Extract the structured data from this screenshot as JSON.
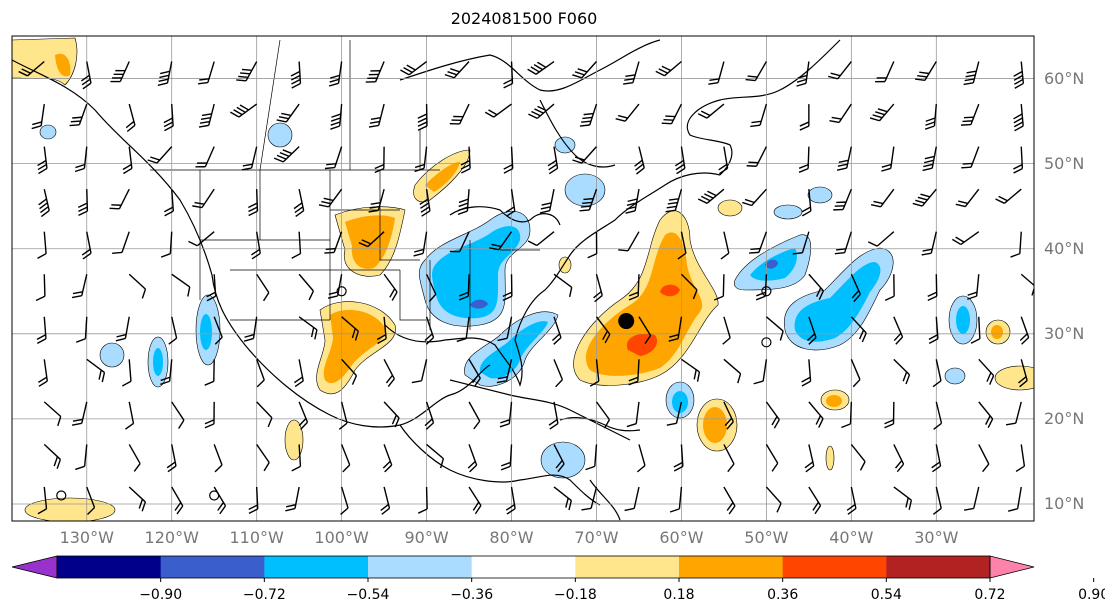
{
  "title": "2024081500 F060",
  "lat_labels": [
    "60°N",
    "50°N",
    "40°N",
    "30°N",
    "20°N",
    "10°N"
  ],
  "lon_labels": [
    "130°W",
    "120°W",
    "110°W",
    "100°W",
    "90°W",
    "80°W",
    "70°W",
    "60°W",
    "50°W",
    "40°W",
    "30°W"
  ],
  "colorbar": {
    "ticks": [
      "−0.90",
      "−0.72",
      "−0.54",
      "−0.36",
      "−0.18",
      "0.18",
      "0.36",
      "0.54",
      "0.72",
      "0.90"
    ],
    "colors": [
      "#9932cc",
      "#00008b",
      "#3a5fcd",
      "#00bfff",
      "#aadcff",
      "#ffffff",
      "#ffe68c",
      "#ffa500",
      "#ff4500",
      "#b22222",
      "#ff82ab"
    ]
  },
  "markers": {
    "storm_center": {
      "lon": -66.5,
      "lat": 31.5
    },
    "open_circles": [
      {
        "lon": -100,
        "lat": 35
      },
      {
        "lon": -50,
        "lat": 35
      },
      {
        "lon": -50,
        "lat": 29
      },
      {
        "lon": -133,
        "lat": 11
      },
      {
        "lon": -115,
        "lat": 11
      }
    ]
  }
}
